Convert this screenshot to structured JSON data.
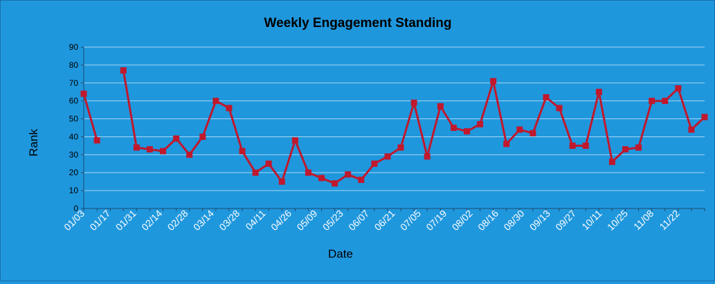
{
  "chart_data": {
    "type": "line",
    "title": "Weekly Engagement Standing",
    "xlabel": "Date",
    "ylabel": "Rank",
    "ylim": [
      0,
      90
    ],
    "yticks": [
      0,
      10,
      20,
      30,
      40,
      50,
      60,
      70,
      80,
      90
    ],
    "grid": true,
    "legend": "none",
    "x_tick_labels": [
      "01/03",
      "01/17",
      "01/31",
      "02/14",
      "02/28",
      "03/14",
      "03/28",
      "04/11",
      "04/26",
      "05/09",
      "05/23",
      "06/07",
      "06/21",
      "07/05",
      "07/19",
      "08/02",
      "08/16",
      "08/30",
      "09/13",
      "09/27",
      "10/11",
      "10/25",
      "11/08",
      "11/22"
    ],
    "series": [
      {
        "values": [
          64,
          38,
          null,
          77,
          34,
          33,
          32,
          39,
          30,
          40,
          60,
          56,
          32,
          20,
          25,
          15,
          38,
          20,
          17,
          14,
          19,
          16,
          25,
          29,
          34,
          59,
          29,
          57,
          45,
          43,
          47,
          71,
          36,
          44,
          42,
          62,
          56,
          35,
          35,
          65,
          26,
          33,
          34,
          60,
          60,
          67,
          44,
          51
        ]
      }
    ],
    "colors": {
      "background": "#1f97dd",
      "line": "#c0182d",
      "grid": "#a9d6f2",
      "axis": "#1a4a6e"
    }
  }
}
